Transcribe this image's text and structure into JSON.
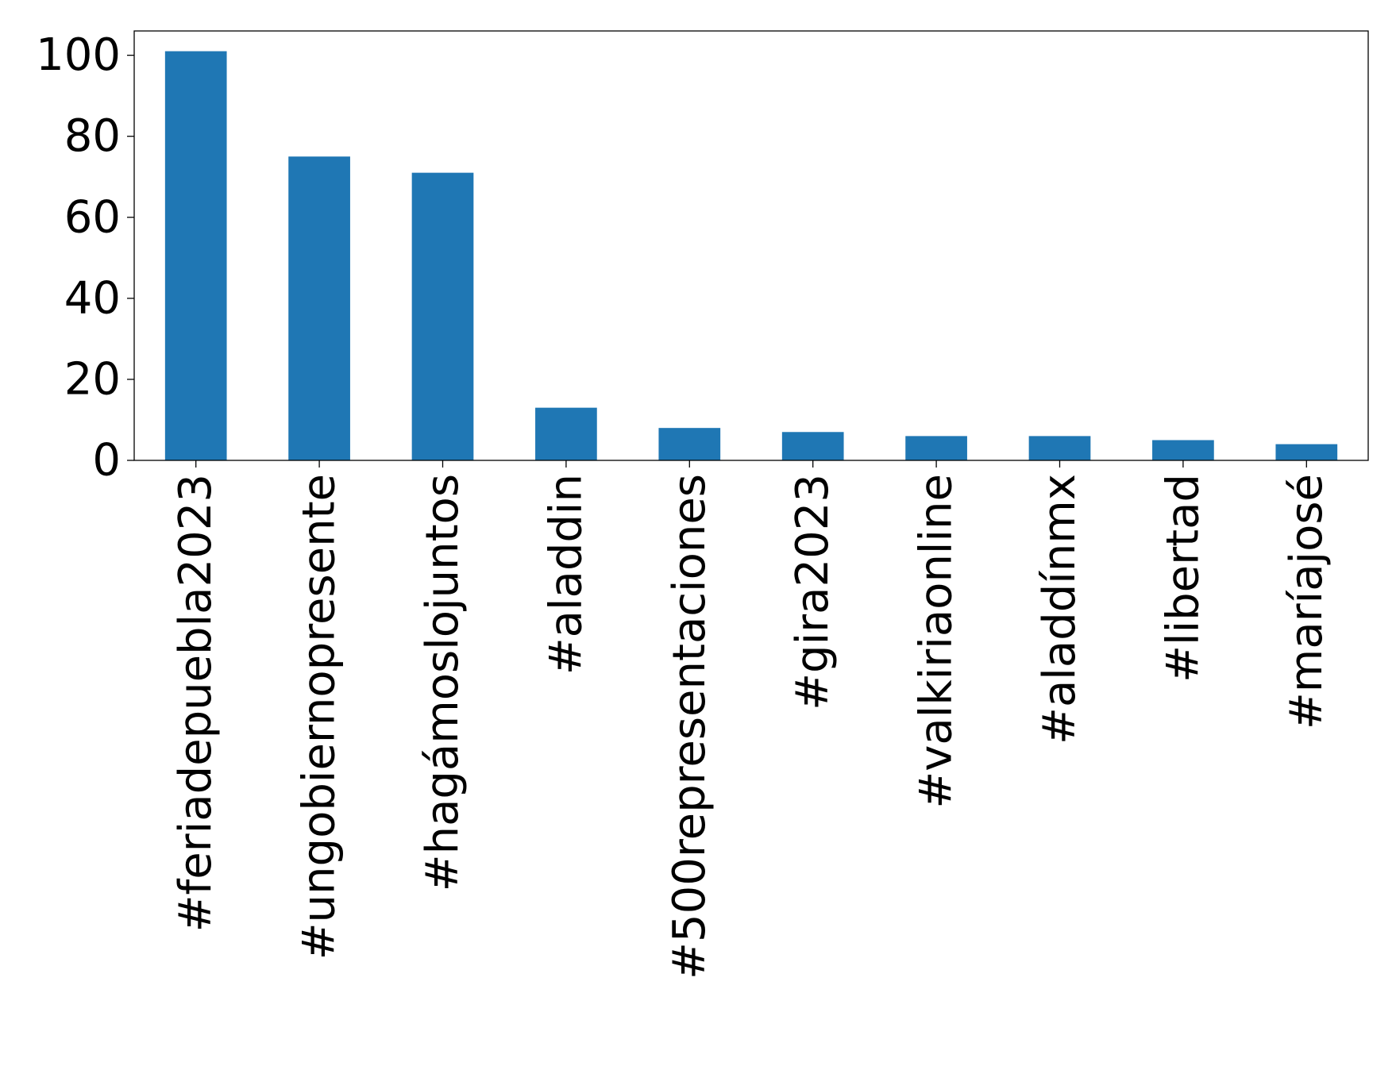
{
  "chart_data": {
    "type": "bar",
    "title": "",
    "xlabel": "",
    "ylabel": "",
    "categories": [
      "#feriadepuebla2023",
      "#ungobiernopresente",
      "#hagámoslojuntos",
      "#aladdin",
      "#500representaciones",
      "#gira2023",
      "#valkiriaonline",
      "#aladdínmx",
      "#libertad",
      "#maríajosé"
    ],
    "values": [
      101,
      75,
      71,
      13,
      8,
      7,
      6,
      6,
      5,
      4
    ],
    "ylim": [
      0,
      106
    ],
    "yticks": [
      0,
      20,
      40,
      60,
      80,
      100
    ],
    "grid": false,
    "legend": "none",
    "bar_color": "#1f77b4"
  }
}
